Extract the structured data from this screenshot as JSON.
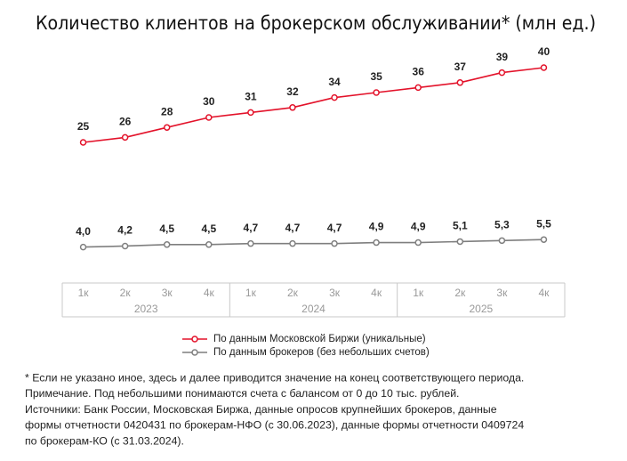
{
  "chart_data": {
    "type": "line",
    "title": "Количество клиентов на брокерском обслуживании* (млн ед.)",
    "categories": [
      "1к",
      "2к",
      "3к",
      "4к",
      "1к",
      "2к",
      "3к",
      "4к",
      "1к",
      "2к",
      "3к",
      "4к"
    ],
    "x_groups": [
      "2023",
      "2024",
      "2025"
    ],
    "series": [
      {
        "name": "По данным Московской Биржи (уникальные)",
        "color": "#e3122a",
        "values": [
          25,
          26,
          28,
          30,
          31,
          32,
          34,
          35,
          36,
          37,
          39,
          40
        ]
      },
      {
        "name": "По данным брокеров (без небольших счетов)",
        "color": "#7f7f7f",
        "values": [
          4.0,
          4.2,
          4.5,
          4.5,
          4.7,
          4.7,
          4.7,
          4.9,
          4.9,
          5.1,
          5.3,
          5.5
        ],
        "value_labels": [
          "4,0",
          "4,2",
          "4,5",
          "4,5",
          "4,7",
          "4,7",
          "4,7",
          "4,9",
          "4,9",
          "5,1",
          "5,3",
          "5,5"
        ]
      }
    ]
  },
  "notes": [
    "* Если не указано иное, здесь и далее приводится значение на конец соответствующего периода.",
    "Примечание. Под небольшими понимаются счета с балансом от 0 до 10 тыс. рублей.",
    "Источники: Банк России, Московская Биржа, данные опросов крупнейших брокеров, данные",
    "формы отчетности 0420431 по брокерам-НФО (с 30.06.2023), данные формы отчетности 0409724",
    "по брокерам-КО (с 31.03.2024)."
  ]
}
